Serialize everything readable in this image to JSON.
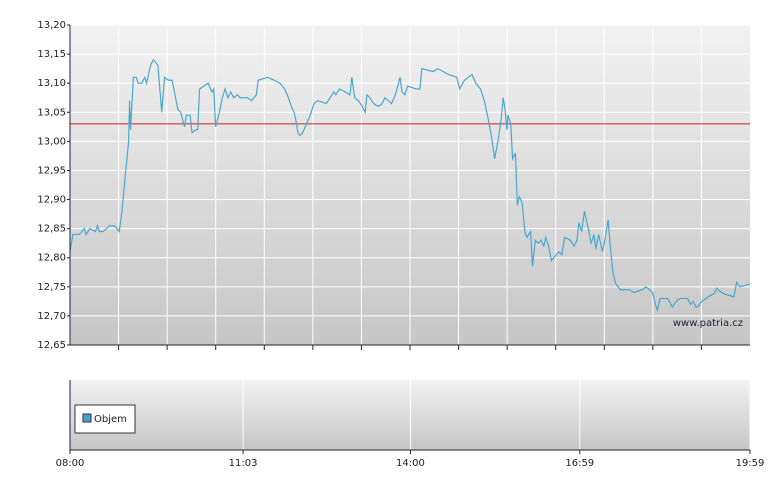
{
  "chart_data": {
    "type": "line",
    "watermark": "www.patria.cz",
    "x": [
      "08:00",
      "08:03",
      "08:10",
      "08:15",
      "08:17",
      "08:21",
      "08:27",
      "08:29",
      "08:31",
      "08:35",
      "08:42",
      "08:47",
      "08:52",
      "08:55",
      "08:59",
      "09:02",
      "09:03",
      "09:04",
      "09:07",
      "09:10",
      "09:12",
      "09:16",
      "09:19",
      "09:21",
      "09:25",
      "09:28",
      "09:31",
      "09:33",
      "09:35",
      "09:37",
      "09:40",
      "09:44",
      "09:48",
      "09:51",
      "09:54",
      "09:57",
      "10:01",
      "10:03",
      "10:07",
      "10:09",
      "10:13",
      "10:15",
      "10:17",
      "10:26",
      "10:30",
      "10:32",
      "10:34",
      "10:38",
      "10:41",
      "10:44",
      "10:47",
      "10:50",
      "10:53",
      "10:57",
      "11:00",
      "11:08",
      "11:12",
      "11:17",
      "11:19",
      "11:29",
      "11:36",
      "11:42",
      "11:47",
      "11:51",
      "11:54",
      "11:57",
      "11:59",
      "12:01",
      "12:03",
      "12:06",
      "12:10",
      "12:14",
      "12:18",
      "12:22",
      "12:31",
      "12:35",
      "12:39",
      "12:41",
      "12:45",
      "12:51",
      "12:56",
      "12:58",
      "13:01",
      "13:05",
      "13:09",
      "13:12",
      "13:14",
      "13:17",
      "13:21",
      "13:26",
      "13:30",
      "13:33",
      "13:40",
      "13:44",
      "13:49",
      "13:51",
      "13:54",
      "13:57",
      "14:06",
      "14:10",
      "14:12",
      "14:24",
      "14:29",
      "14:40",
      "14:49",
      "14:52",
      "14:57",
      "15:01",
      "15:05",
      "15:09",
      "15:14",
      "15:18",
      "15:22",
      "15:26",
      "15:29",
      "15:33",
      "15:36",
      "15:38",
      "15:40",
      "15:42",
      "15:43",
      "15:46",
      "15:48",
      "15:51",
      "15:53",
      "15:55",
      "15:58",
      "16:01",
      "16:03",
      "16:07",
      "16:09",
      "16:12",
      "16:15",
      "16:18",
      "16:21",
      "16:23",
      "16:26",
      "16:29",
      "16:34",
      "16:37",
      "16:40",
      "16:43",
      "16:49",
      "16:53",
      "16:56",
      "16:58",
      "17:01",
      "17:04",
      "17:08",
      "17:11",
      "17:14",
      "17:16",
      "17:19",
      "17:23",
      "17:26",
      "17:29",
      "17:31",
      "17:34",
      "17:37",
      "17:42",
      "17:52",
      "17:56",
      "18:05",
      "18:09",
      "18:13",
      "18:16",
      "18:19",
      "18:21",
      "18:24",
      "18:32",
      "18:37",
      "18:41",
      "18:45",
      "18:53",
      "18:56",
      "18:59",
      "19:02",
      "19:04",
      "19:08",
      "19:17",
      "19:21",
      "19:24",
      "19:27",
      "19:33",
      "19:42",
      "19:45",
      "19:48",
      "19:55",
      "19:59"
    ],
    "series": [
      {
        "color": "#4aa7cc",
        "values": [
          12.81,
          12.84,
          12.84,
          12.85,
          12.84,
          12.85,
          12.845,
          12.855,
          12.845,
          12.845,
          12.855,
          12.855,
          12.845,
          12.88,
          12.95,
          13.0,
          13.07,
          13.02,
          13.11,
          13.11,
          13.1,
          13.1,
          13.11,
          13.1,
          13.13,
          13.14,
          13.135,
          13.13,
          13.09,
          13.05,
          13.11,
          13.105,
          13.105,
          13.08,
          13.055,
          13.05,
          13.025,
          13.045,
          13.045,
          13.015,
          13.02,
          13.02,
          13.09,
          13.1,
          13.085,
          13.09,
          13.025,
          13.05,
          13.075,
          13.09,
          13.075,
          13.085,
          13.075,
          13.08,
          13.075,
          13.075,
          13.07,
          13.08,
          13.105,
          13.11,
          13.105,
          13.1,
          13.09,
          13.075,
          13.06,
          13.05,
          13.035,
          13.015,
          13.01,
          13.015,
          13.03,
          13.045,
          13.065,
          13.07,
          13.065,
          13.075,
          13.085,
          13.08,
          13.09,
          13.085,
          13.08,
          13.11,
          13.075,
          13.07,
          13.06,
          13.05,
          13.08,
          13.075,
          13.065,
          13.06,
          13.065,
          13.075,
          13.065,
          13.08,
          13.11,
          13.085,
          13.08,
          13.095,
          13.09,
          13.09,
          13.125,
          13.12,
          13.125,
          13.115,
          13.11,
          13.09,
          13.105,
          13.11,
          13.115,
          13.1,
          13.09,
          13.07,
          13.04,
          13.005,
          12.97,
          13.005,
          13.04,
          13.075,
          13.055,
          13.02,
          13.045,
          13.03,
          12.97,
          12.98,
          12.89,
          12.905,
          12.895,
          12.845,
          12.835,
          12.845,
          12.785,
          12.83,
          12.825,
          12.83,
          12.82,
          12.835,
          12.82,
          12.795,
          12.805,
          12.81,
          12.805,
          12.835,
          12.83,
          12.82,
          12.83,
          12.86,
          12.845,
          12.88,
          12.85,
          12.825,
          12.84,
          12.815,
          12.84,
          12.81,
          12.835,
          12.865,
          12.825,
          12.775,
          12.755,
          12.745,
          12.745,
          12.74,
          12.745,
          12.75,
          12.745,
          12.74,
          12.72,
          12.71,
          12.73,
          12.73,
          12.715,
          12.725,
          12.73,
          12.73,
          12.72,
          12.725,
          12.715,
          12.716,
          12.725,
          12.735,
          12.738,
          12.748,
          12.742,
          12.737,
          12.733,
          12.758,
          12.75,
          12.753,
          12.755
        ]
      }
    ],
    "reference_line": {
      "value": 13.03,
      "color": "#cc2222"
    },
    "ylim": [
      12.65,
      13.2
    ],
    "yticks": [
      {
        "value": 12.65,
        "label": "12,65"
      },
      {
        "value": 12.7,
        "label": "12,70"
      },
      {
        "value": 12.75,
        "label": "12,75"
      },
      {
        "value": 12.8,
        "label": "12,80"
      },
      {
        "value": 12.85,
        "label": "12,85"
      },
      {
        "value": 12.9,
        "label": "12,90"
      },
      {
        "value": 12.95,
        "label": "12,95"
      },
      {
        "value": 13.0,
        "label": "13,00"
      },
      {
        "value": 13.05,
        "label": "13,05"
      },
      {
        "value": 13.1,
        "label": "13,10"
      },
      {
        "value": 13.15,
        "label": "13,15"
      },
      {
        "value": 13.2,
        "label": "13,20"
      }
    ],
    "xlim": [
      "08:00",
      "19:59"
    ],
    "xticks": [
      "08:00",
      "11:03",
      "14:00",
      "16:59",
      "19:59"
    ],
    "grid": true,
    "volume": {
      "name": "Objem",
      "color": "#4a9fd6"
    }
  }
}
